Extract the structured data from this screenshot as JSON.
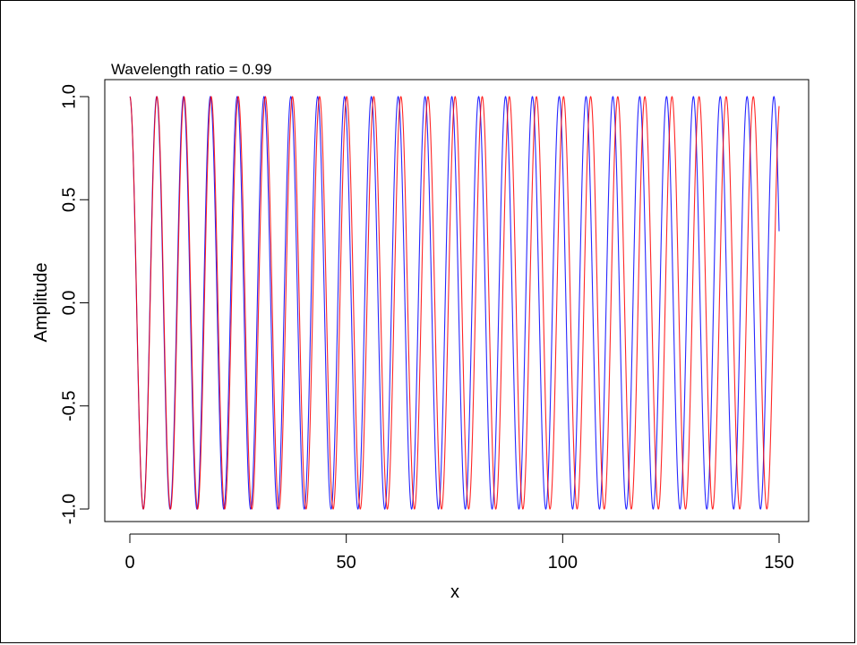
{
  "chart_data": {
    "type": "line",
    "title": "Wavelength ratio = 0.99",
    "xlabel": "x",
    "ylabel": "Amplitude",
    "xlim": [
      0,
      150
    ],
    "ylim": [
      -1.0,
      1.0
    ],
    "x_ticks": [
      0,
      50,
      100,
      150
    ],
    "y_ticks": [
      -1.0,
      -0.5,
      0.0,
      0.5,
      1.0
    ],
    "x_tick_labels": [
      "0",
      "50",
      "100",
      "150"
    ],
    "y_tick_labels": [
      "-1.0",
      "-0.5",
      "0.0",
      "0.5",
      "1.0"
    ],
    "grid": false,
    "legend": "none",
    "series": [
      {
        "color": "#0000ff",
        "function": "cos(2*pi*x/6.2)",
        "period": 6.2,
        "x_range": [
          0,
          150
        ]
      },
      {
        "color": "#ff0000",
        "function": "cos(2*pi*x/6.262626)",
        "period": 6.262626,
        "x_range": [
          0,
          150
        ]
      }
    ]
  }
}
